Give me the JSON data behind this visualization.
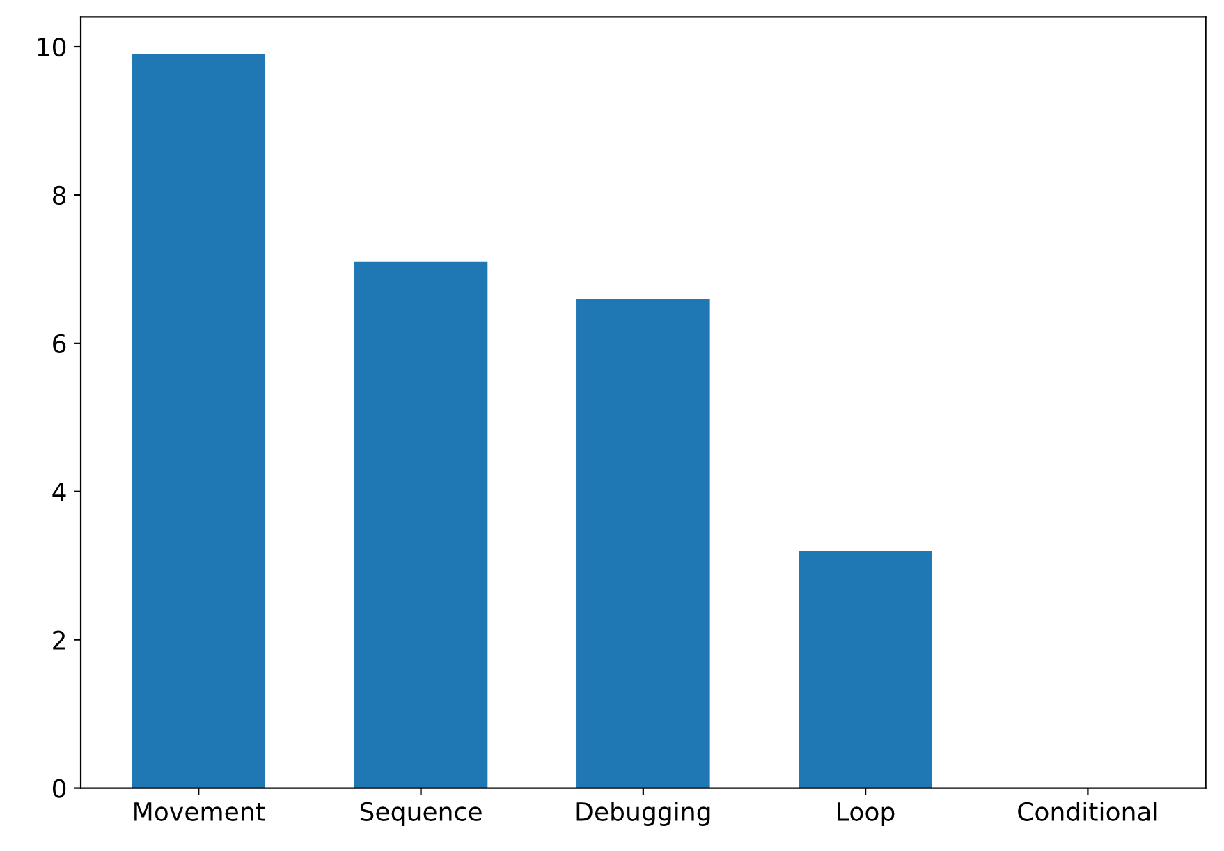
{
  "chart_data": {
    "type": "bar",
    "categories": [
      "Movement",
      "Sequence",
      "Debugging",
      "Loop",
      "Conditional"
    ],
    "values": [
      9.9,
      7.1,
      6.6,
      3.2,
      0
    ],
    "color": "#1f77b4",
    "ylim": [
      0,
      10.4
    ],
    "yticks": [
      0,
      2,
      4,
      6,
      8,
      10
    ],
    "grid": false
  }
}
